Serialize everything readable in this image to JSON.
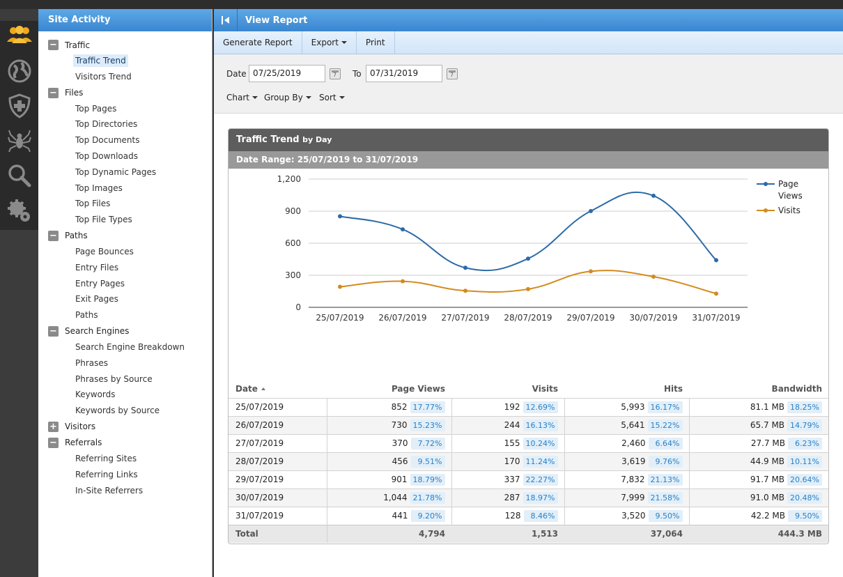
{
  "iconbar": [
    {
      "name": "users-icon",
      "color": "#f0a81c"
    },
    {
      "name": "globe-icon",
      "color": "#888888"
    },
    {
      "name": "shield-plus-icon",
      "color": "#888888"
    },
    {
      "name": "spider-icon",
      "color": "#888888"
    },
    {
      "name": "search-icon",
      "color": "#888888"
    },
    {
      "name": "gear-icon",
      "color": "#888888"
    }
  ],
  "sidebar": {
    "title": "Site Activity",
    "groups": [
      {
        "label": "Traffic",
        "toggle": "−",
        "items": [
          "Traffic Trend",
          "Visitors Trend"
        ]
      },
      {
        "label": "Files",
        "toggle": "−",
        "items": [
          "Top Pages",
          "Top Directories",
          "Top Documents",
          "Top Downloads",
          "Top Dynamic Pages",
          "Top Images",
          "Top Files",
          "Top File Types"
        ]
      },
      {
        "label": "Paths",
        "toggle": "−",
        "items": [
          "Page Bounces",
          "Entry Files",
          "Entry Pages",
          "Exit Pages",
          "Paths"
        ]
      },
      {
        "label": "Search Engines",
        "toggle": "−",
        "items": [
          "Search Engine Breakdown",
          "Phrases",
          "Phrases by Source",
          "Keywords",
          "Keywords by Source"
        ]
      },
      {
        "label": "Visitors",
        "toggle": "+",
        "items": []
      },
      {
        "label": "Referrals",
        "toggle": "−",
        "items": [
          "Referring Sites",
          "Referring Links",
          "In-Site Referrers"
        ]
      }
    ],
    "selected": "Traffic Trend"
  },
  "view": {
    "title": "View Report"
  },
  "toolbar": {
    "generate": "Generate Report",
    "export": "Export",
    "print": "Print"
  },
  "filters": {
    "date_label": "Date",
    "date_from": "07/25/2019",
    "to_label": "To",
    "date_to": "07/31/2019",
    "chart": "Chart",
    "group_by": "Group By",
    "sort": "Sort"
  },
  "report": {
    "title": "Traffic Trend",
    "title_suffix": "by Day",
    "range": "Date Range: 25/07/2019 to 31/07/2019"
  },
  "chart_data": {
    "type": "line",
    "categories": [
      "25/07/2019",
      "26/07/2019",
      "27/07/2019",
      "28/07/2019",
      "29/07/2019",
      "30/07/2019",
      "31/07/2019"
    ],
    "series": [
      {
        "name": "Page Views",
        "values": [
          852,
          730,
          370,
          456,
          901,
          1044,
          441
        ],
        "color": "#2c6aa7"
      },
      {
        "name": "Visits",
        "values": [
          192,
          244,
          155,
          170,
          337,
          287,
          128
        ],
        "color": "#d48a1e"
      }
    ],
    "yticks": [
      "0",
      "300",
      "600",
      "900",
      "1,200"
    ],
    "ylim": [
      0,
      1200
    ],
    "grid": true,
    "legend": "right"
  },
  "table": {
    "headers": [
      "Date",
      "Page Views",
      "Visits",
      "Hits",
      "Bandwidth"
    ],
    "rows": [
      {
        "date": "25/07/2019",
        "pv": "852",
        "pv_pct": "17.77%",
        "visits": "192",
        "visits_pct": "12.69%",
        "hits": "5,993",
        "hits_pct": "16.17%",
        "bw": "81.1 MB",
        "bw_pct": "18.25%"
      },
      {
        "date": "26/07/2019",
        "pv": "730",
        "pv_pct": "15.23%",
        "visits": "244",
        "visits_pct": "16.13%",
        "hits": "5,641",
        "hits_pct": "15.22%",
        "bw": "65.7 MB",
        "bw_pct": "14.79%"
      },
      {
        "date": "27/07/2019",
        "pv": "370",
        "pv_pct": "7.72%",
        "visits": "155",
        "visits_pct": "10.24%",
        "hits": "2,460",
        "hits_pct": "6.64%",
        "bw": "27.7 MB",
        "bw_pct": "6.23%"
      },
      {
        "date": "28/07/2019",
        "pv": "456",
        "pv_pct": "9.51%",
        "visits": "170",
        "visits_pct": "11.24%",
        "hits": "3,619",
        "hits_pct": "9.76%",
        "bw": "44.9 MB",
        "bw_pct": "10.11%"
      },
      {
        "date": "29/07/2019",
        "pv": "901",
        "pv_pct": "18.79%",
        "visits": "337",
        "visits_pct": "22.27%",
        "hits": "7,832",
        "hits_pct": "21.13%",
        "bw": "91.7 MB",
        "bw_pct": "20.64%"
      },
      {
        "date": "30/07/2019",
        "pv": "1,044",
        "pv_pct": "21.78%",
        "visits": "287",
        "visits_pct": "18.97%",
        "hits": "7,999",
        "hits_pct": "21.58%",
        "bw": "91.0 MB",
        "bw_pct": "20.48%"
      },
      {
        "date": "31/07/2019",
        "pv": "441",
        "pv_pct": "9.20%",
        "visits": "128",
        "visits_pct": "8.46%",
        "hits": "3,520",
        "hits_pct": "9.50%",
        "bw": "42.2 MB",
        "bw_pct": "9.50%"
      }
    ],
    "total": {
      "label": "Total",
      "pv": "4,794",
      "visits": "1,513",
      "hits": "37,064",
      "bw": "444.3 MB"
    }
  }
}
